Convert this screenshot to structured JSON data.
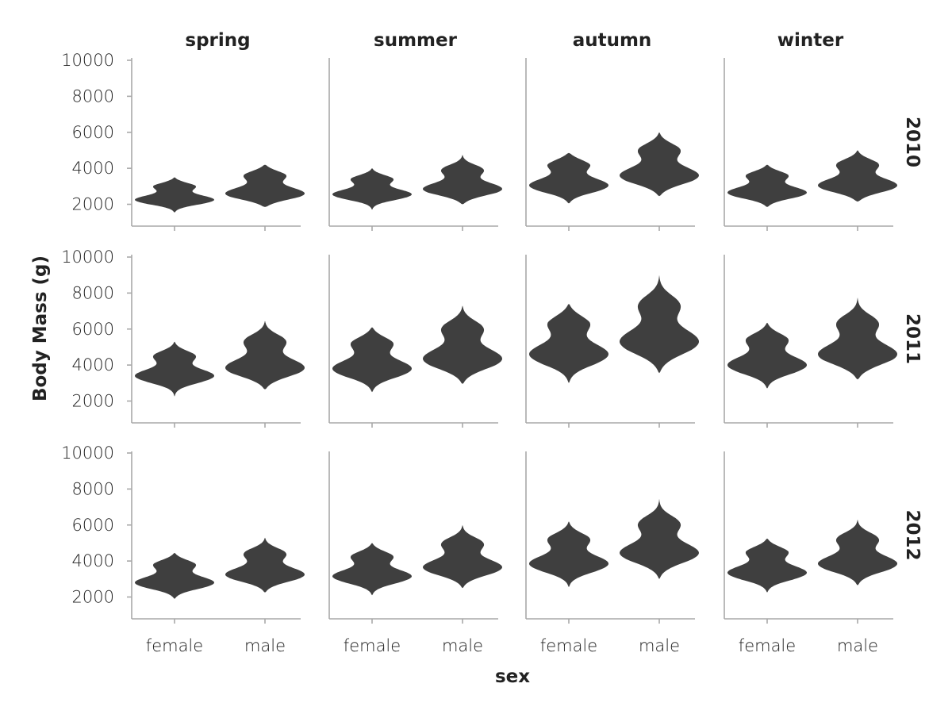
{
  "chart_data": {
    "type": "violin",
    "xlabel": "sex",
    "ylabel": "Body Mass (g)",
    "col_facet": [
      "spring",
      "summer",
      "autumn",
      "winter"
    ],
    "row_facet": [
      "2010",
      "2011",
      "2012"
    ],
    "categories": [
      "female",
      "male"
    ],
    "ylim": [
      700,
      10000
    ],
    "yticks": [
      2000,
      4000,
      6000,
      8000,
      10000
    ],
    "grid": false,
    "color": "#3f3f3f",
    "violins": [
      {
        "year": "2010",
        "season": "spring",
        "sex": "female",
        "min": 1550,
        "max": 3500,
        "lower_mode": 2250,
        "upper_mode": 3000
      },
      {
        "year": "2010",
        "season": "spring",
        "sex": "male",
        "min": 1850,
        "max": 4200,
        "lower_mode": 2600,
        "upper_mode": 3600
      },
      {
        "year": "2010",
        "season": "summer",
        "sex": "female",
        "min": 1700,
        "max": 4000,
        "lower_mode": 2550,
        "upper_mode": 3400
      },
      {
        "year": "2010",
        "season": "summer",
        "sex": "male",
        "min": 2000,
        "max": 4750,
        "lower_mode": 2850,
        "upper_mode": 3900
      },
      {
        "year": "2010",
        "season": "autumn",
        "sex": "female",
        "min": 2050,
        "max": 4850,
        "lower_mode": 3050,
        "upper_mode": 4200
      },
      {
        "year": "2010",
        "season": "autumn",
        "sex": "male",
        "min": 2450,
        "max": 6000,
        "lower_mode": 3600,
        "upper_mode": 5000
      },
      {
        "year": "2010",
        "season": "winter",
        "sex": "female",
        "min": 1850,
        "max": 4200,
        "lower_mode": 2650,
        "upper_mode": 3600
      },
      {
        "year": "2010",
        "season": "winter",
        "sex": "male",
        "min": 2150,
        "max": 5000,
        "lower_mode": 3050,
        "upper_mode": 4200
      },
      {
        "year": "2011",
        "season": "spring",
        "sex": "female",
        "min": 2250,
        "max": 5300,
        "lower_mode": 3400,
        "upper_mode": 4500
      },
      {
        "year": "2011",
        "season": "spring",
        "sex": "male",
        "min": 2650,
        "max": 6450,
        "lower_mode": 3850,
        "upper_mode": 5300
      },
      {
        "year": "2011",
        "season": "summer",
        "sex": "female",
        "min": 2500,
        "max": 6100,
        "lower_mode": 3800,
        "upper_mode": 5200
      },
      {
        "year": "2011",
        "season": "summer",
        "sex": "male",
        "min": 2950,
        "max": 7300,
        "lower_mode": 4350,
        "upper_mode": 6000
      },
      {
        "year": "2011",
        "season": "autumn",
        "sex": "female",
        "min": 3000,
        "max": 7400,
        "lower_mode": 4600,
        "upper_mode": 6300
      },
      {
        "year": "2011",
        "season": "autumn",
        "sex": "male",
        "min": 3550,
        "max": 9000,
        "lower_mode": 5300,
        "upper_mode": 7300
      },
      {
        "year": "2011",
        "season": "winter",
        "sex": "female",
        "min": 2700,
        "max": 6350,
        "lower_mode": 4000,
        "upper_mode": 5400
      },
      {
        "year": "2011",
        "season": "winter",
        "sex": "male",
        "min": 3200,
        "max": 7750,
        "lower_mode": 4600,
        "upper_mode": 6300
      },
      {
        "year": "2012",
        "season": "spring",
        "sex": "female",
        "min": 1900,
        "max": 4450,
        "lower_mode": 2800,
        "upper_mode": 3800
      },
      {
        "year": "2012",
        "season": "spring",
        "sex": "male",
        "min": 2250,
        "max": 5300,
        "lower_mode": 3250,
        "upper_mode": 4400
      },
      {
        "year": "2012",
        "season": "summer",
        "sex": "female",
        "min": 2100,
        "max": 5000,
        "lower_mode": 3150,
        "upper_mode": 4250
      },
      {
        "year": "2012",
        "season": "summer",
        "sex": "male",
        "min": 2500,
        "max": 6000,
        "lower_mode": 3650,
        "upper_mode": 4950
      },
      {
        "year": "2012",
        "season": "autumn",
        "sex": "female",
        "min": 2550,
        "max": 6200,
        "lower_mode": 3850,
        "upper_mode": 5200
      },
      {
        "year": "2012",
        "season": "autumn",
        "sex": "male",
        "min": 3000,
        "max": 7450,
        "lower_mode": 4450,
        "upper_mode": 6050
      },
      {
        "year": "2012",
        "season": "winter",
        "sex": "female",
        "min": 2250,
        "max": 5250,
        "lower_mode": 3350,
        "upper_mode": 4500
      },
      {
        "year": "2012",
        "season": "winter",
        "sex": "male",
        "min": 2650,
        "max": 6300,
        "lower_mode": 3850,
        "upper_mode": 5200
      }
    ]
  }
}
